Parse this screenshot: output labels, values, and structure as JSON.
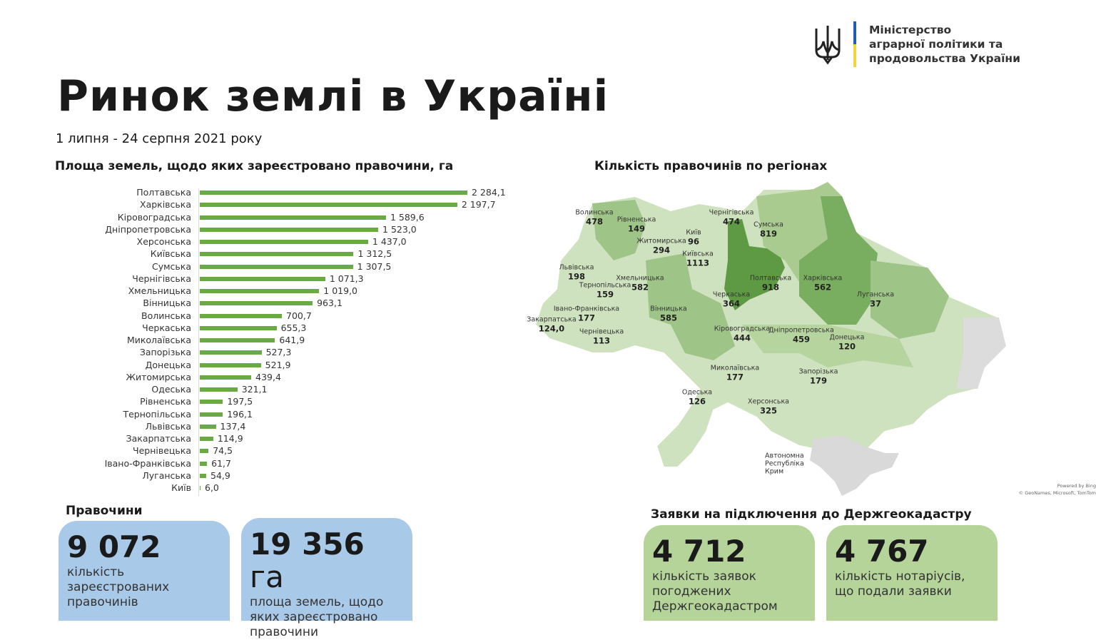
{
  "logo": {
    "text": "Міністерство\nаграрної політики та\nпродовольства України"
  },
  "title": "Ринок землі в Україні",
  "period": "1 липня - 24 серпня 2021 року",
  "colors": {
    "bar": "#6aaa45",
    "blue_card": "#a9c9e8",
    "green_card": "#b5d49a"
  },
  "chart_data": [
    {
      "type": "bar",
      "orientation": "horizontal",
      "title": "Площа земель, щодо яких зареєстровано правочини, га",
      "categories": [
        "Полтавська",
        "Харківська",
        "Кіровоградська",
        "Дніпропетровська",
        "Херсонська",
        "Київська",
        "Сумська",
        "Чернігівська",
        "Хмельницька",
        "Вінницька",
        "Волинська",
        "Черкаська",
        "Миколаївська",
        "Запорізька",
        "Донецька",
        "Житомирська",
        "Одеська",
        "Рівненська",
        "Тернопільська",
        "Львівська",
        "Закарпатська",
        "Чернівецька",
        "Івано-Франківська",
        "Луганська",
        "Київ"
      ],
      "values": [
        2284.1,
        2197.7,
        1589.6,
        1523.0,
        1437.0,
        1312.5,
        1307.5,
        1071.3,
        1019.0,
        963.1,
        700.7,
        655.3,
        641.9,
        527.3,
        521.9,
        439.4,
        321.1,
        197.5,
        196.1,
        137.4,
        114.9,
        74.5,
        61.7,
        54.9,
        6.0
      ],
      "value_labels": [
        "2 284,1",
        "2 197,7",
        "1 589,6",
        "1 523,0",
        "1 437,0",
        "1 312,5",
        "1 307,5",
        "1 071,3",
        "1 019,0",
        "963,1",
        "700,7",
        "655,3",
        "641,9",
        "527,3",
        "521,9",
        "439,4",
        "321,1",
        "197,5",
        "196,1",
        "137,4",
        "114,9",
        "74,5",
        "61,7",
        "54,9",
        "6,0"
      ]
    },
    {
      "type": "choropleth",
      "title": "Кількість правочинів по регіонах",
      "regions": [
        {
          "name": "Волинська",
          "value": "478"
        },
        {
          "name": "Рівненська",
          "value": "149"
        },
        {
          "name": "Житомирська",
          "value": "294"
        },
        {
          "name": "Київ",
          "value": "96"
        },
        {
          "name": "Київська",
          "value": "1113"
        },
        {
          "name": "Чернігівська",
          "value": "474"
        },
        {
          "name": "Сумська",
          "value": "819"
        },
        {
          "name": "Львівська",
          "value": "198"
        },
        {
          "name": "Тернопільська",
          "value": "159"
        },
        {
          "name": "Хмельницька",
          "value": "582"
        },
        {
          "name": "Вінницька",
          "value": "585"
        },
        {
          "name": "Черкаська",
          "value": "364"
        },
        {
          "name": "Полтавська",
          "value": "918"
        },
        {
          "name": "Харківська",
          "value": "562"
        },
        {
          "name": "Луганська",
          "value": "37"
        },
        {
          "name": "Івано-Франківська",
          "value": "177"
        },
        {
          "name": "Закарпатська",
          "value": "124,0"
        },
        {
          "name": "Чернівецька",
          "value": "113"
        },
        {
          "name": "Кіровоградська",
          "value": "444"
        },
        {
          "name": "Дніпропетровська",
          "value": "459"
        },
        {
          "name": "Донецька",
          "value": "120"
        },
        {
          "name": "Миколаївська",
          "value": "177"
        },
        {
          "name": "Запорізька",
          "value": "179"
        },
        {
          "name": "Одеська",
          "value": "126"
        },
        {
          "name": "Херсонська",
          "value": "325"
        },
        {
          "name": "Автономна Республіка Крим",
          "value": ""
        }
      ],
      "credit": "Powered by Bing\n© GeoNames, Microsoft, TomTom"
    }
  ],
  "deals": {
    "heading": "Правочини",
    "count": {
      "value": "9 072",
      "desc": "кількість\nзареєстрованих\nправочинів"
    },
    "area": {
      "value": "19 356",
      "unit": "га",
      "desc": "площа земель, щодо\nяких зареєстровано\nправочини"
    }
  },
  "applications": {
    "heading": "Заявки на підключення до Держгеокадастру",
    "approved": {
      "value": "4 712",
      "desc": "кількість заявок\nпогоджених\nДержгеокадастром"
    },
    "notaries": {
      "value": "4 767",
      "desc": "кількість нотаріусів,\nщо подали заявки"
    }
  }
}
